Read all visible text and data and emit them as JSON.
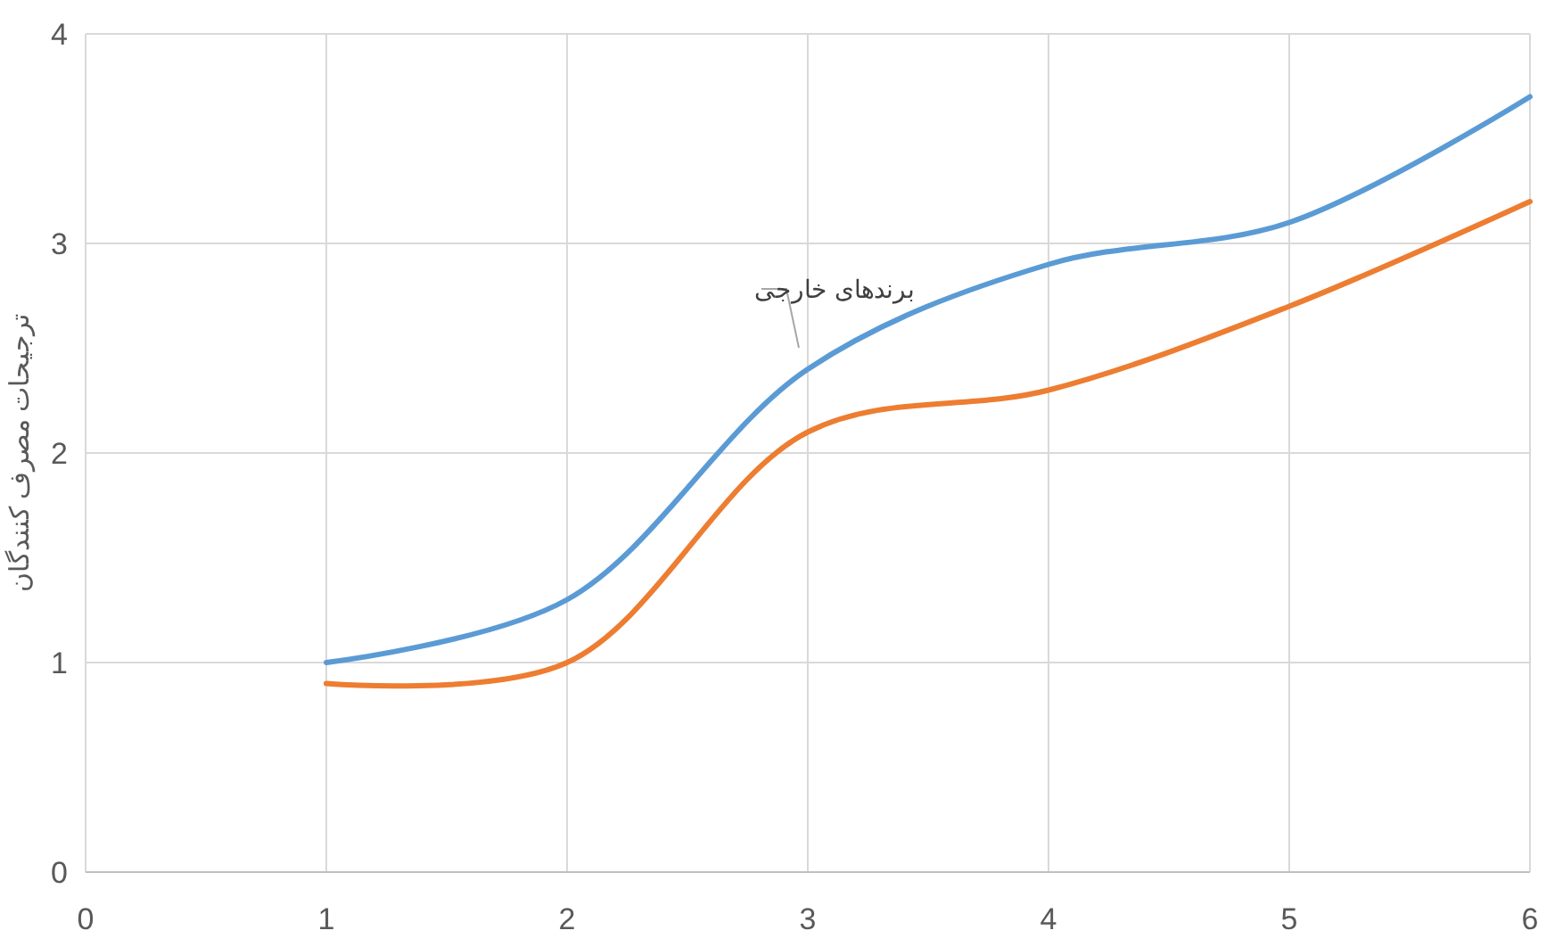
{
  "chart_data": {
    "type": "line",
    "ylabel": "ترجیحات مصرف کنندگان",
    "x": [
      1,
      2,
      3,
      4,
      5,
      6
    ],
    "series": [
      {
        "name": "برندهای خارجی",
        "color": "#5b9bd5",
        "values": [
          1.0,
          1.3,
          2.4,
          2.9,
          3.1,
          3.7
        ]
      },
      {
        "color": "#ed7d31",
        "values": [
          0.9,
          1.0,
          2.1,
          2.3,
          2.7,
          3.2
        ]
      }
    ],
    "xlim": [
      0,
      6
    ],
    "xticks": [
      0,
      1,
      2,
      3,
      4,
      5,
      6
    ],
    "ylim": [
      0,
      4
    ],
    "yticks": [
      0,
      1,
      2,
      3,
      4
    ],
    "grid": true,
    "marker": "none",
    "line_style": "solid"
  }
}
